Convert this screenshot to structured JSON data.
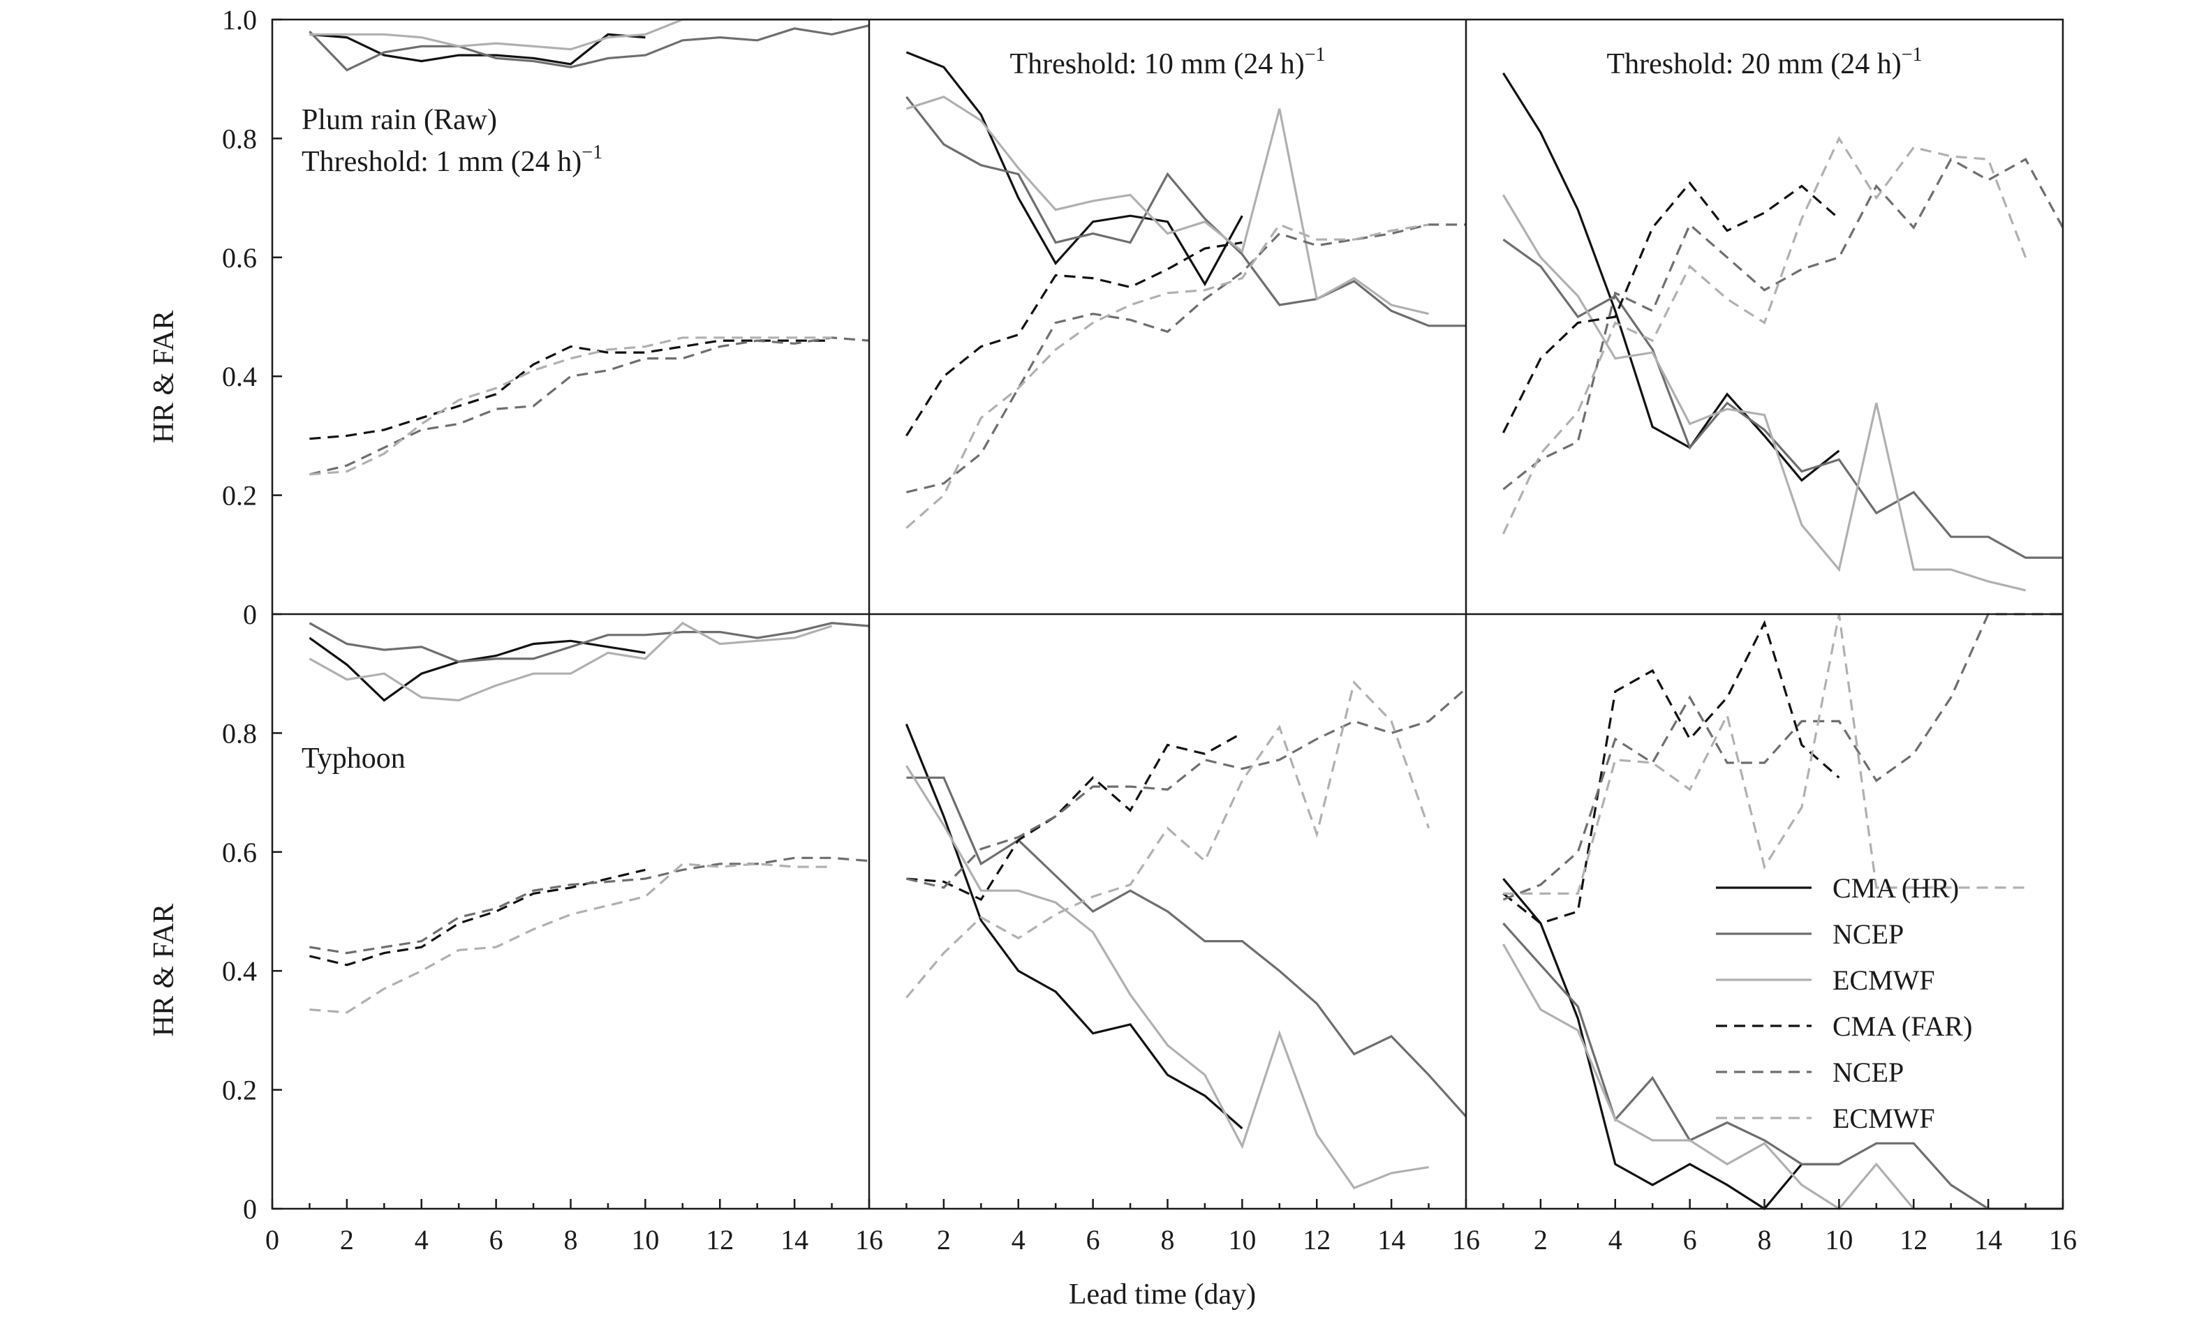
{
  "chart_data": {
    "type": "line",
    "xlabel": "Lead time (day)",
    "ylabel": "HR & FAR",
    "xlim": [
      0,
      16
    ],
    "ylim": [
      0,
      1
    ],
    "x_ticks_first_column": [
      "0",
      "2",
      "4",
      "6",
      "8",
      "10",
      "12",
      "14",
      "16"
    ],
    "x_ticks_other_columns": [
      "2",
      "4",
      "6",
      "8",
      "10",
      "12",
      "14",
      "16"
    ],
    "y_ticks_top_row": [
      "0",
      "0.2",
      "0.4",
      "0.6",
      "0.8",
      "1.0"
    ],
    "y_ticks_bottom_row": [
      "0",
      "0.2",
      "0.4",
      "0.6",
      "0.8"
    ],
    "legend": {
      "placement": "bottom-right of bottom-right panel",
      "entries": [
        "CMA (HR)",
        "NCEP",
        "ECMWF",
        "CMA (FAR)",
        "NCEP",
        "ECMWF"
      ]
    },
    "series_styles": [
      {
        "key": "cma_hr",
        "color": "#111111",
        "dash": "solid"
      },
      {
        "key": "ncep_hr",
        "color": "#6e6e6e",
        "dash": "solid"
      },
      {
        "key": "ecmwf_hr",
        "color": "#b0b0b0",
        "dash": "solid"
      },
      {
        "key": "cma_far",
        "color": "#111111",
        "dash": "dashed"
      },
      {
        "key": "ncep_far",
        "color": "#6e6e6e",
        "dash": "dashed"
      },
      {
        "key": "ecmwf_far",
        "color": "#b0b0b0",
        "dash": "dashed"
      }
    ],
    "panels": [
      {
        "row": 0,
        "col": 0,
        "label_lines": [
          "Plum rain (Raw)",
          "Threshold: 1 mm (24 h)",
          "−1"
        ],
        "x": [
          1,
          2,
          3,
          4,
          5,
          6,
          7,
          8,
          9,
          10,
          11,
          12,
          13,
          14,
          15,
          16
        ],
        "series": {
          "cma_hr": [
            0.975,
            0.97,
            0.94,
            0.93,
            0.94,
            0.94,
            0.935,
            0.925,
            0.975,
            0.97
          ],
          "ncep_hr": [
            0.98,
            0.915,
            0.945,
            0.955,
            0.955,
            0.935,
            0.93,
            0.92,
            0.935,
            0.94,
            0.965,
            0.97,
            0.965,
            0.985,
            0.975,
            0.99
          ],
          "ecmwf_hr": [
            0.975,
            0.975,
            0.975,
            0.97,
            0.955,
            0.96,
            0.955,
            0.95,
            0.97,
            0.975,
            1.0,
            1.0,
            1.0,
            1.0,
            1.0
          ],
          "cma_far": [
            0.295,
            0.3,
            0.31,
            0.33,
            0.35,
            0.37,
            0.42,
            0.45,
            0.44,
            0.44,
            0.45,
            0.46,
            0.46,
            0.46,
            0.46
          ],
          "ncep_far": [
            0.235,
            0.25,
            0.28,
            0.31,
            0.32,
            0.345,
            0.35,
            0.4,
            0.41,
            0.43,
            0.43,
            0.45,
            0.46,
            0.455,
            0.465,
            0.46
          ],
          "ecmwf_far": [
            0.235,
            0.24,
            0.27,
            0.32,
            0.36,
            0.38,
            0.41,
            0.43,
            0.445,
            0.45,
            0.465,
            0.465,
            0.465,
            0.465,
            0.465
          ]
        }
      },
      {
        "row": 0,
        "col": 1,
        "label_lines": [
          "Threshold: 10 mm (24 h)",
          "−1"
        ],
        "x": [
          1,
          2,
          3,
          4,
          5,
          6,
          7,
          8,
          9,
          10,
          11,
          12,
          13,
          14,
          15,
          16
        ],
        "series": {
          "cma_hr": [
            0.945,
            0.92,
            0.84,
            0.7,
            0.59,
            0.66,
            0.67,
            0.66,
            0.555,
            0.67
          ],
          "ncep_hr": [
            0.87,
            0.79,
            0.755,
            0.74,
            0.625,
            0.64,
            0.625,
            0.74,
            0.665,
            0.605,
            0.52,
            0.53,
            0.56,
            0.51,
            0.485,
            0.485
          ],
          "ecmwf_hr": [
            0.85,
            0.87,
            0.83,
            0.75,
            0.68,
            0.695,
            0.705,
            0.64,
            0.66,
            0.61,
            0.85,
            0.53,
            0.565,
            0.52,
            0.505
          ],
          "cma_far": [
            0.3,
            0.4,
            0.45,
            0.47,
            0.57,
            0.565,
            0.55,
            0.58,
            0.615,
            0.625
          ],
          "ncep_far": [
            0.205,
            0.22,
            0.27,
            0.38,
            0.49,
            0.505,
            0.495,
            0.475,
            0.53,
            0.575,
            0.64,
            0.62,
            0.63,
            0.64,
            0.655,
            0.655
          ],
          "ecmwf_far": [
            0.145,
            0.2,
            0.33,
            0.38,
            0.445,
            0.49,
            0.52,
            0.54,
            0.545,
            0.565,
            0.655,
            0.63,
            0.63,
            0.645,
            0.655
          ]
        }
      },
      {
        "row": 0,
        "col": 2,
        "label_lines": [
          "Threshold: 20 mm (24 h)",
          "−1"
        ],
        "x": [
          1,
          2,
          3,
          4,
          5,
          6,
          7,
          8,
          9,
          10,
          11,
          12,
          13,
          14,
          15,
          16
        ],
        "series": {
          "cma_hr": [
            0.91,
            0.81,
            0.68,
            0.51,
            0.315,
            0.28,
            0.37,
            0.3,
            0.225,
            0.275
          ],
          "ncep_hr": [
            0.63,
            0.585,
            0.5,
            0.535,
            0.445,
            0.28,
            0.355,
            0.31,
            0.24,
            0.26,
            0.17,
            0.205,
            0.13,
            0.13,
            0.095,
            0.095
          ],
          "ecmwf_hr": [
            0.705,
            0.6,
            0.535,
            0.43,
            0.44,
            0.32,
            0.345,
            0.335,
            0.15,
            0.075,
            0.355,
            0.075,
            0.075,
            0.055,
            0.04
          ],
          "cma_far": [
            0.305,
            0.43,
            0.49,
            0.5,
            0.65,
            0.725,
            0.645,
            0.675,
            0.72,
            0.665
          ],
          "ncep_far": [
            0.21,
            0.26,
            0.29,
            0.54,
            0.51,
            0.655,
            0.6,
            0.545,
            0.58,
            0.6,
            0.72,
            0.65,
            0.765,
            0.73,
            0.765,
            0.65
          ],
          "ecmwf_far": [
            0.135,
            0.27,
            0.34,
            0.49,
            0.46,
            0.585,
            0.53,
            0.49,
            0.665,
            0.8,
            0.7,
            0.785,
            0.77,
            0.765,
            0.6
          ]
        }
      },
      {
        "row": 1,
        "col": 0,
        "label_lines": [
          "Typhoon"
        ],
        "x": [
          1,
          2,
          3,
          4,
          5,
          6,
          7,
          8,
          9,
          10,
          11,
          12,
          13,
          14,
          15,
          16
        ],
        "series": {
          "cma_hr": [
            0.96,
            0.915,
            0.855,
            0.9,
            0.92,
            0.93,
            0.95,
            0.955,
            0.945,
            0.935
          ],
          "ncep_hr": [
            0.985,
            0.95,
            0.94,
            0.945,
            0.92,
            0.925,
            0.925,
            0.945,
            0.965,
            0.965,
            0.97,
            0.97,
            0.96,
            0.97,
            0.985,
            0.98
          ],
          "ecmwf_hr": [
            0.925,
            0.89,
            0.9,
            0.86,
            0.855,
            0.88,
            0.9,
            0.9,
            0.935,
            0.925,
            0.985,
            0.95,
            0.955,
            0.96,
            0.98
          ],
          "cma_far": [
            0.425,
            0.41,
            0.43,
            0.44,
            0.48,
            0.5,
            0.53,
            0.54,
            0.555,
            0.57
          ],
          "ncep_far": [
            0.44,
            0.43,
            0.44,
            0.45,
            0.49,
            0.505,
            0.535,
            0.545,
            0.55,
            0.555,
            0.57,
            0.58,
            0.58,
            0.59,
            0.59,
            0.585
          ],
          "ecmwf_far": [
            0.335,
            0.33,
            0.37,
            0.4,
            0.435,
            0.44,
            0.47,
            0.495,
            0.51,
            0.525,
            0.58,
            0.575,
            0.58,
            0.575,
            0.575
          ]
        }
      },
      {
        "row": 1,
        "col": 1,
        "label_lines": [],
        "x": [
          1,
          2,
          3,
          4,
          5,
          6,
          7,
          8,
          9,
          10,
          11,
          12,
          13,
          14,
          15,
          16
        ],
        "series": {
          "cma_hr": [
            0.815,
            0.66,
            0.485,
            0.4,
            0.365,
            0.295,
            0.31,
            0.225,
            0.19,
            0.135
          ],
          "ncep_hr": [
            0.725,
            0.725,
            0.58,
            0.62,
            0.56,
            0.5,
            0.535,
            0.5,
            0.45,
            0.45,
            0.4,
            0.345,
            0.26,
            0.29,
            0.225,
            0.155
          ],
          "ecmwf_hr": [
            0.745,
            0.645,
            0.535,
            0.535,
            0.515,
            0.465,
            0.36,
            0.275,
            0.225,
            0.105,
            0.295,
            0.125,
            0.035,
            0.06,
            0.07
          ],
          "cma_far": [
            0.555,
            0.55,
            0.52,
            0.62,
            0.66,
            0.725,
            0.67,
            0.78,
            0.765,
            0.8
          ],
          "ncep_far": [
            0.555,
            0.54,
            0.605,
            0.625,
            0.66,
            0.71,
            0.71,
            0.705,
            0.755,
            0.74,
            0.755,
            0.79,
            0.82,
            0.8,
            0.82,
            0.875
          ],
          "ecmwf_far": [
            0.355,
            0.43,
            0.49,
            0.455,
            0.495,
            0.525,
            0.545,
            0.64,
            0.585,
            0.72,
            0.81,
            0.63,
            0.885,
            0.82,
            0.64
          ]
        }
      },
      {
        "row": 1,
        "col": 2,
        "label_lines": [],
        "x": [
          1,
          2,
          3,
          4,
          5,
          6,
          7,
          8,
          9,
          10,
          11,
          12,
          13,
          14,
          15,
          16
        ],
        "series": {
          "cma_hr": [
            0.555,
            0.48,
            0.32,
            0.075,
            0.04,
            0.075,
            0.04,
            0.0,
            0.075,
            0.075
          ],
          "ncep_hr": [
            0.48,
            0.41,
            0.34,
            0.15,
            0.22,
            0.115,
            0.145,
            0.115,
            0.075,
            0.075,
            0.11,
            0.11,
            0.04,
            0.0,
            0.0,
            0.0
          ],
          "ecmwf_hr": [
            0.445,
            0.335,
            0.3,
            0.15,
            0.115,
            0.115,
            0.075,
            0.11,
            0.04,
            0.0,
            0.075,
            0.0,
            0.0,
            0.0,
            0.0
          ],
          "cma_far": [
            0.53,
            0.48,
            0.5,
            0.87,
            0.905,
            0.79,
            0.86,
            0.985,
            0.78,
            0.725
          ],
          "ncep_far": [
            0.52,
            0.545,
            0.6,
            0.79,
            0.75,
            0.86,
            0.75,
            0.75,
            0.82,
            0.82,
            0.72,
            0.765,
            0.86,
            1.0,
            1.0,
            1.0
          ],
          "ecmwf_far": [
            0.53,
            0.53,
            0.53,
            0.755,
            0.75,
            0.705,
            0.83,
            0.575,
            0.675,
            1.0,
            0.54,
            0.54,
            0.54,
            0.54,
            0.54
          ]
        }
      }
    ]
  }
}
